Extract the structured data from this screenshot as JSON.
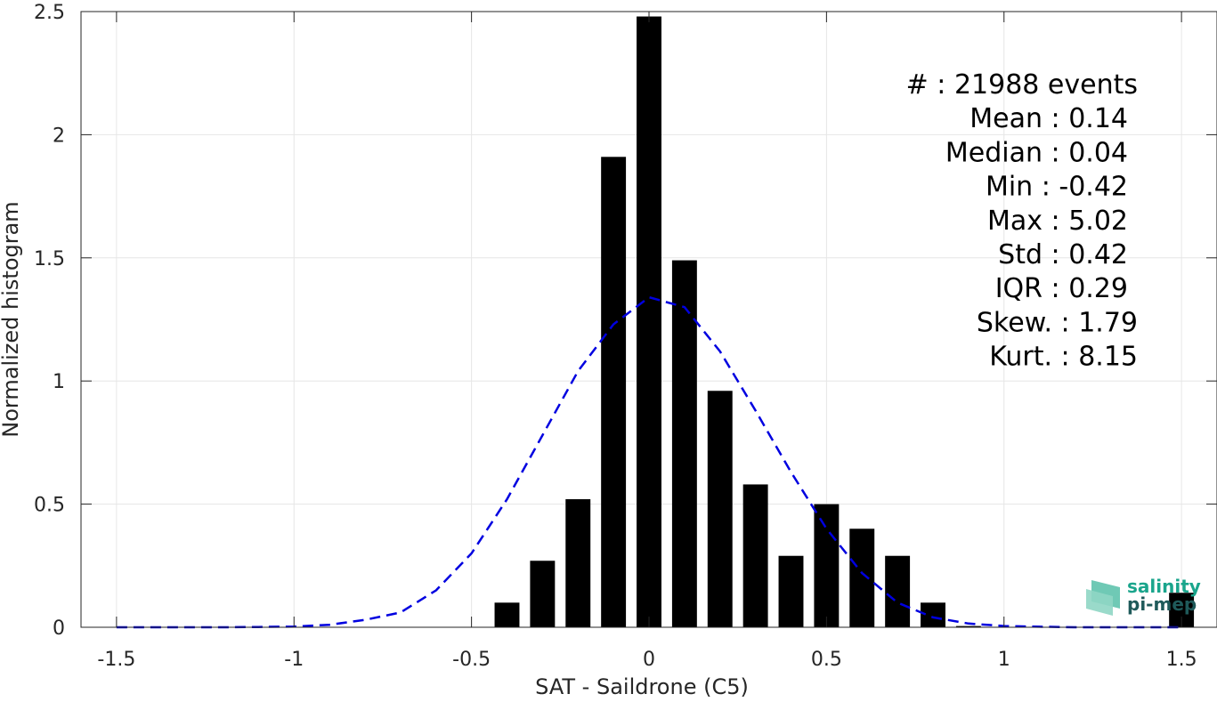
{
  "chart_data": {
    "type": "bar",
    "xlabel": "SAT - Saildrone (C5)",
    "ylabel": "Normalized histogram",
    "xlim": [
      -1.6,
      1.6
    ],
    "ylim": [
      0,
      2.5
    ],
    "xticks": [
      -1.5,
      -1,
      -0.5,
      0,
      0.5,
      1,
      1.5
    ],
    "xtick_labels": [
      "-1.5",
      "-1",
      "-0.5",
      "0",
      "0.5",
      "1",
      "1.5"
    ],
    "yticks": [
      0,
      0.5,
      1,
      1.5,
      2,
      2.5
    ],
    "ytick_labels": [
      "0",
      "0.5",
      "1",
      "1.5",
      "2",
      "2.5"
    ],
    "grid": true,
    "bar_color": "#000000",
    "bar_width": 0.07,
    "bars": {
      "x": [
        -0.4,
        -0.3,
        -0.2,
        -0.1,
        0.0,
        0.1,
        0.2,
        0.3,
        0.4,
        0.5,
        0.6,
        0.7,
        0.8,
        0.9,
        1.5
      ],
      "values": [
        0.1,
        0.27,
        0.52,
        1.91,
        2.48,
        1.49,
        0.96,
        0.58,
        0.29,
        0.5,
        0.4,
        0.29,
        0.1,
        0.005,
        0.14
      ]
    },
    "fit_curve": {
      "style": "dashed",
      "color": "#0000e0",
      "x": [
        -1.5,
        -1.4,
        -1.3,
        -1.2,
        -1.1,
        -1.0,
        -0.9,
        -0.8,
        -0.7,
        -0.6,
        -0.5,
        -0.4,
        -0.3,
        -0.2,
        -0.1,
        0.0,
        0.1,
        0.2,
        0.3,
        0.4,
        0.5,
        0.6,
        0.7,
        0.8,
        0.9,
        1.0,
        1.1,
        1.2,
        1.3,
        1.4,
        1.5
      ],
      "y": [
        0.0,
        0.0,
        0.0,
        0.0,
        0.001,
        0.003,
        0.01,
        0.03,
        0.06,
        0.15,
        0.3,
        0.52,
        0.78,
        1.04,
        1.23,
        1.34,
        1.3,
        1.12,
        0.88,
        0.63,
        0.4,
        0.22,
        0.1,
        0.04,
        0.015,
        0.005,
        0.002,
        0.0,
        0.0,
        0.0,
        0.0
      ]
    },
    "stats": [
      {
        "label": "#  : 21988 events"
      },
      {
        "label": "Mean : 0.14"
      },
      {
        "label": "Median : 0.04"
      },
      {
        "label": "Min : -0.42"
      },
      {
        "label": "Max : 5.02"
      },
      {
        "label": "Std : 0.42"
      },
      {
        "label": "IQR : 0.29"
      },
      {
        "label": "Skew. : 1.79"
      },
      {
        "label": "Kurt. : 8.15"
      }
    ]
  },
  "logo": {
    "line1": "salinity",
    "line2": "pi-mep",
    "color_teal": "#1aa58c",
    "color_dark": "#1f5a5a"
  }
}
